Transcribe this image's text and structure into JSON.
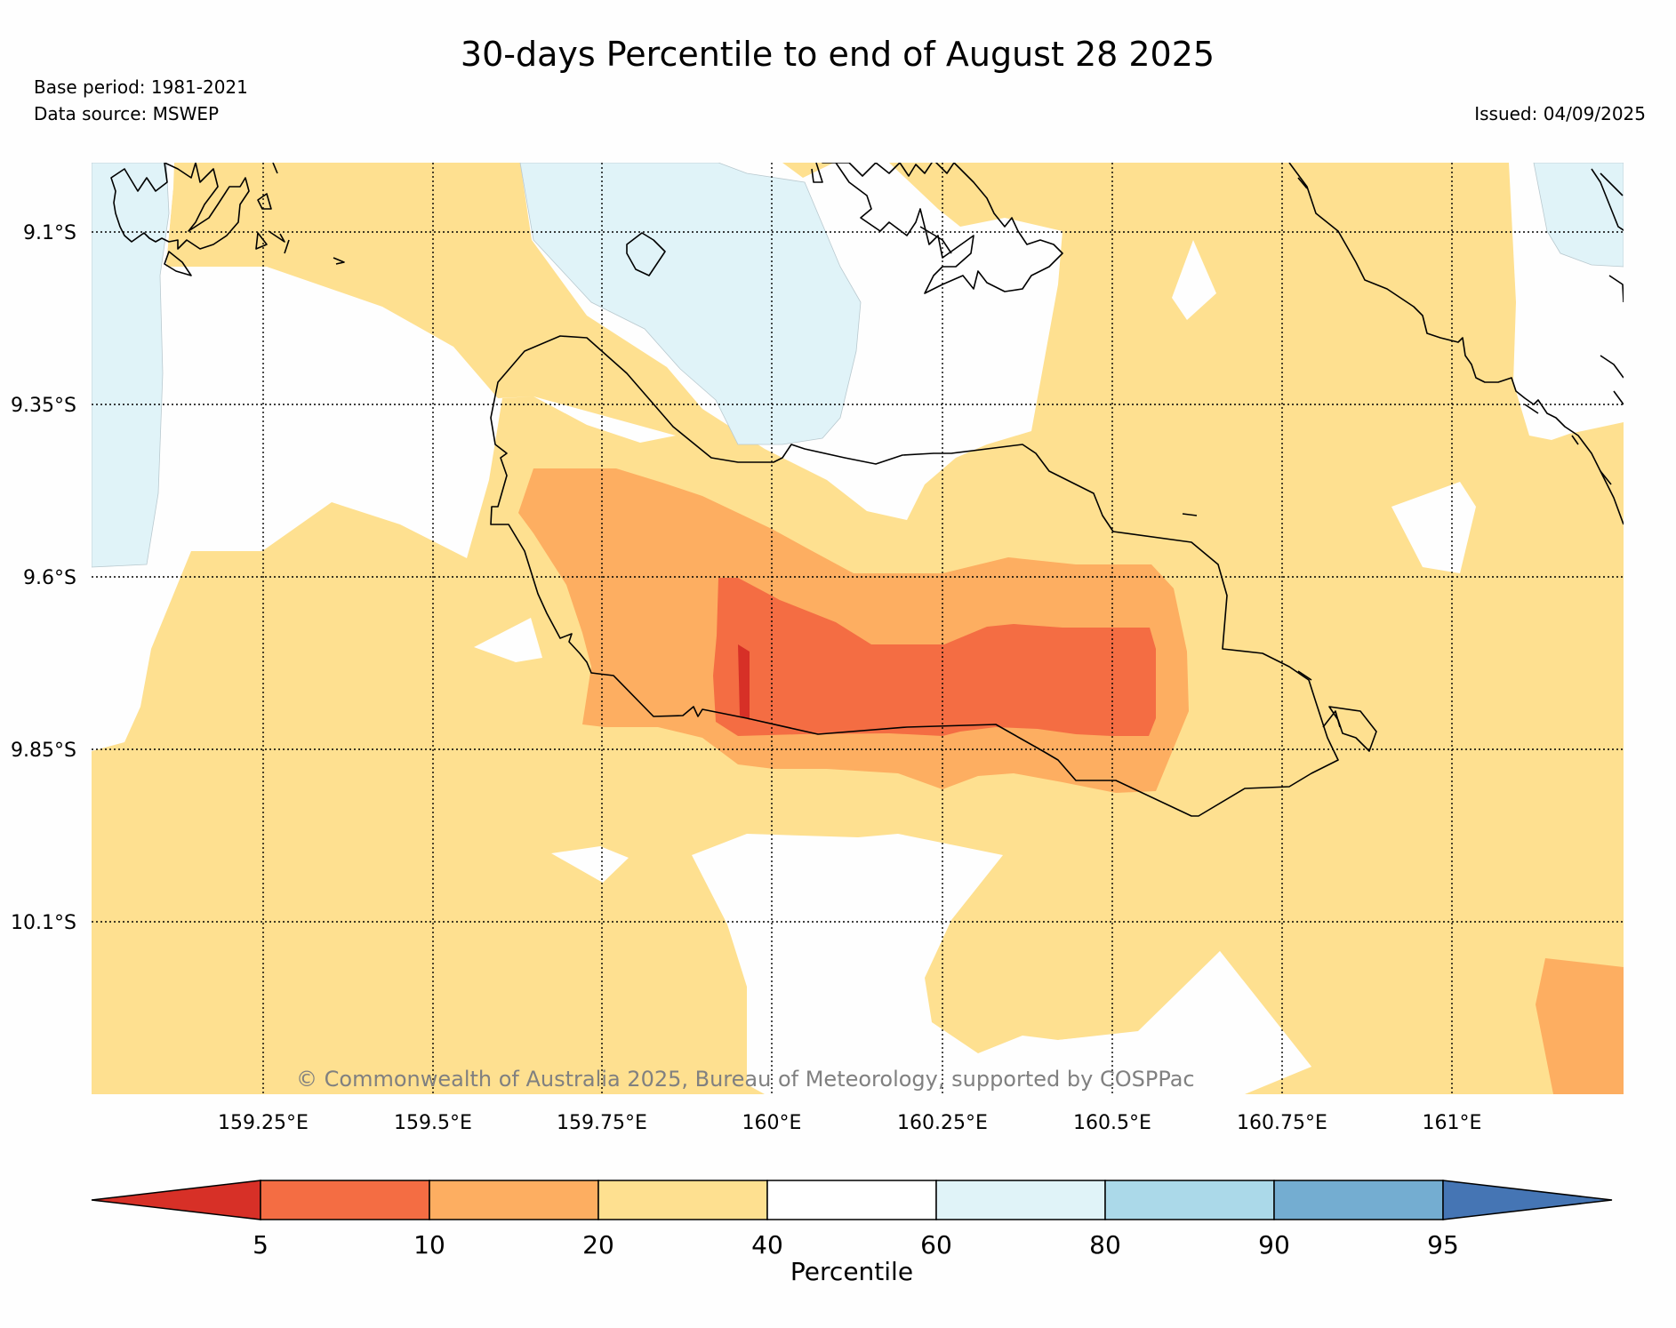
{
  "header": {
    "title": "30-days Percentile to end of August 28 2025",
    "base_period": "Base period: 1981-2021",
    "data_source": "Data source: MSWEP",
    "issued": "Issued: 04/09/2025"
  },
  "map": {
    "lat_labels": [
      "9.1°S",
      "9.35°S",
      "9.6°S",
      "9.85°S",
      "10.1°S"
    ],
    "lon_labels": [
      "159.25°E",
      "159.5°E",
      "159.75°E",
      "160°E",
      "160.25°E",
      "160.5°E",
      "160.75°E",
      "161°E"
    ],
    "copyright": "© Commonwealth of Australia 2025, Bureau of Meteorology, supported by COSPPac"
  },
  "colorbar": {
    "label": "Percentile",
    "ticks": [
      "5",
      "10",
      "20",
      "40",
      "60",
      "80",
      "90",
      "95"
    ],
    "colors": {
      "below5": "#d73027",
      "p5_10": "#f46d43",
      "p10_20": "#fdae61",
      "p20_40": "#fee090",
      "p40_60": "#ffffff",
      "p60_80": "#e0f3f8",
      "p80_90": "#abd9e9",
      "p90_95": "#74add1",
      "above95": "#4575b4"
    }
  }
}
